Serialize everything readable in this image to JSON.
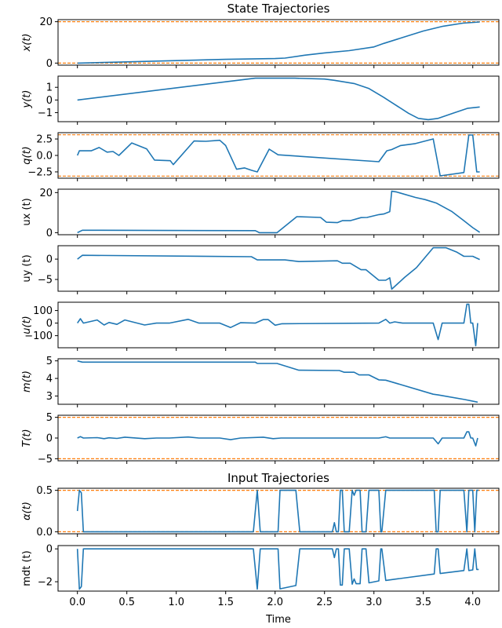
{
  "colors": {
    "series": "#1f77b4",
    "bounds": "#ff7f0e"
  },
  "titles": {
    "state": "State Trajectories",
    "input": "Input Trajectories"
  },
  "xlabel": "Time",
  "xlim": [
    -0.196,
    4.264
  ],
  "xticks": [
    0,
    0.5,
    1,
    1.5,
    2,
    2.5,
    3,
    3.5,
    4
  ],
  "xtick_labels": [
    "0.0",
    "0.5",
    "1.0",
    "1.5",
    "2.0",
    "2.5",
    "3.0",
    "3.5",
    "4.0"
  ],
  "chart_data": [
    {
      "type": "line",
      "ylabel": "x(t)",
      "italic": true,
      "ylim": [
        -1,
        21
      ],
      "yticks": [
        0,
        20
      ],
      "ytick_labels": [
        "0",
        "20"
      ],
      "bounds": [
        0,
        20
      ],
      "x": [
        0,
        0.5,
        1,
        1.5,
        2.0,
        2.1,
        2.3,
        2.5,
        2.75,
        3.0,
        3.1,
        3.3,
        3.5,
        3.7,
        3.9,
        4.07
      ],
      "y": [
        0,
        0.6,
        1.2,
        1.8,
        2.2,
        2.4,
        3.8,
        4.9,
        6.0,
        7.8,
        9.5,
        12.5,
        15.5,
        17.8,
        19.3,
        19.9
      ]
    },
    {
      "type": "line",
      "ylabel": "y(t)",
      "italic": true,
      "ylim": [
        -1.71,
        1.88
      ],
      "yticks": [
        -1,
        0,
        1
      ],
      "ytick_labels": [
        "−1",
        "0",
        "1"
      ],
      "bounds": [],
      "x": [
        0,
        1.8,
        2.2,
        2.5,
        2.6,
        2.8,
        2.95,
        3.1,
        3.2,
        3.35,
        3.45,
        3.55,
        3.65,
        3.8,
        3.95,
        4.07
      ],
      "y": [
        0,
        1.72,
        1.72,
        1.65,
        1.55,
        1.3,
        0.9,
        0.2,
        -0.3,
        -1.05,
        -1.45,
        -1.55,
        -1.45,
        -1.05,
        -0.65,
        -0.55
      ]
    },
    {
      "type": "line",
      "ylabel": "q(t)",
      "italic": true,
      "ylim": [
        -3.46,
        3.46
      ],
      "yticks": [
        -2.5,
        0,
        2.5
      ],
      "ytick_labels": [
        "−2.5",
        "0.0",
        "2.5"
      ],
      "bounds": [
        -3.14,
        3.14
      ],
      "x": [
        0,
        0.02,
        0.14,
        0.22,
        0.3,
        0.36,
        0.42,
        0.55,
        0.7,
        0.78,
        0.94,
        0.97,
        1.18,
        1.3,
        1.44,
        1.5,
        1.61,
        1.69,
        1.76,
        1.82,
        1.94,
        2.03,
        3.05,
        3.13,
        3.18,
        3.27,
        3.42,
        3.6,
        3.67,
        3.91,
        3.96,
        4.0,
        4.04,
        4.07
      ],
      "y": [
        0,
        0.7,
        0.7,
        1.2,
        0.5,
        0.6,
        0.0,
        1.9,
        1.0,
        -0.7,
        -0.8,
        -1.4,
        2.2,
        2.15,
        2.3,
        1.5,
        -2.1,
        -1.9,
        -2.26,
        -2.5,
        0.95,
        0.1,
        -0.95,
        0.7,
        0.9,
        1.5,
        1.8,
        2.5,
        -3.1,
        -2.6,
        3.1,
        3.1,
        -2.5,
        -2.5
      ]
    },
    {
      "type": "line",
      "ylabel": "ux (t)",
      "italic": false,
      "ylim": [
        -1.03,
        21.7
      ],
      "yticks": [
        0,
        20
      ],
      "ytick_labels": [
        "0",
        "20"
      ],
      "bounds": [],
      "x": [
        0,
        0.05,
        1.8,
        1.84,
        2.02,
        2.22,
        2.46,
        2.52,
        2.63,
        2.68,
        2.76,
        2.87,
        2.93,
        3.05,
        3.1,
        3.16,
        3.18,
        3.23,
        3.42,
        3.52,
        3.63,
        3.79,
        3.91,
        4.0,
        4.07
      ],
      "y": [
        0,
        1.2,
        1.0,
        0,
        0,
        8,
        7.6,
        5.2,
        5,
        6,
        6,
        7.5,
        7.6,
        9,
        9.3,
        10.5,
        20.7,
        20.3,
        17.6,
        16.5,
        14.8,
        10.5,
        6,
        2.5,
        0.2
      ]
    },
    {
      "type": "line",
      "ylabel": "uy (t)",
      "italic": false,
      "ylim": [
        -7.9,
        3.3
      ],
      "yticks": [
        -5,
        0
      ],
      "ytick_labels": [
        "−5",
        "0"
      ],
      "bounds": [],
      "x": [
        0,
        0.05,
        1.76,
        1.82,
        2.1,
        2.24,
        2.63,
        2.68,
        2.76,
        2.87,
        2.92,
        3.05,
        3.12,
        3.16,
        3.18,
        3.31,
        3.43,
        3.6,
        3.73,
        3.84,
        3.91,
        4.0,
        4.07
      ],
      "y": [
        0,
        0.95,
        0.6,
        -0.2,
        -0.2,
        -0.6,
        -0.4,
        -1.0,
        -1.0,
        -2.6,
        -2.6,
        -5.2,
        -5.2,
        -4.6,
        -7.4,
        -4.5,
        -2.1,
        2.8,
        2.8,
        1.7,
        0.7,
        0.7,
        -0.1
      ]
    },
    {
      "type": "line",
      "ylabel": "u(t)",
      "italic": true,
      "ylim": [
        -196,
        166
      ],
      "yticks": [
        -100,
        0,
        100
      ],
      "ytick_labels": [
        "−100",
        "0",
        "100"
      ],
      "bounds": [],
      "x": [
        0,
        0.03,
        0.06,
        0.2,
        0.27,
        0.32,
        0.4,
        0.48,
        0.68,
        0.8,
        0.93,
        1.12,
        1.23,
        1.44,
        1.55,
        1.65,
        1.8,
        1.88,
        1.93,
        2.0,
        2.07,
        3.05,
        3.12,
        3.16,
        3.21,
        3.29,
        3.6,
        3.65,
        3.69,
        3.91,
        3.94,
        3.96,
        3.98,
        4.0,
        4.03,
        4.05
      ],
      "y": [
        0,
        35,
        0,
        25,
        -15,
        5,
        -10,
        25,
        -15,
        0,
        0,
        30,
        0,
        0,
        -35,
        3,
        0,
        28,
        28,
        -17,
        -5,
        0,
        30,
        0,
        10,
        0,
        0,
        -131,
        0,
        0,
        150,
        150,
        0,
        0,
        -180,
        0
      ]
    },
    {
      "type": "line",
      "ylabel": "m(t)",
      "italic": true,
      "ylim": [
        2.53,
        5.12
      ],
      "yticks": [
        3,
        4,
        5
      ],
      "ytick_labels": [
        "3",
        "4",
        "5"
      ],
      "bounds": [],
      "x": [
        0,
        0.05,
        1.8,
        1.82,
        2.02,
        2.24,
        2.65,
        2.7,
        2.8,
        2.85,
        2.95,
        3.05,
        3.12,
        3.6,
        3.65,
        3.92,
        4.05
      ],
      "y": [
        5.0,
        4.93,
        4.93,
        4.85,
        4.85,
        4.47,
        4.45,
        4.35,
        4.35,
        4.2,
        4.2,
        3.92,
        3.9,
        3.1,
        3.06,
        2.8,
        2.65
      ]
    },
    {
      "type": "line",
      "ylabel": "T(t)",
      "italic": true,
      "ylim": [
        -5.5,
        5.5
      ],
      "yticks": [
        -5,
        0,
        5
      ],
      "ytick_labels": [
        "−5",
        "0",
        "5"
      ],
      "bounds": [
        -5,
        5
      ],
      "x": [
        0,
        0.03,
        0.06,
        0.2,
        0.27,
        0.32,
        0.4,
        0.48,
        0.68,
        0.8,
        0.93,
        1.12,
        1.23,
        1.44,
        1.55,
        1.65,
        1.88,
        1.98,
        2.06,
        3.05,
        3.12,
        3.16,
        3.6,
        3.65,
        3.69,
        3.91,
        3.94,
        3.96,
        3.98,
        4.0,
        4.03,
        4.05
      ],
      "y": [
        0,
        0.35,
        0,
        0.1,
        -0.15,
        0.05,
        -0.1,
        0.2,
        -0.15,
        0,
        0,
        0.25,
        0,
        0,
        -0.4,
        0,
        0.2,
        -0.15,
        0,
        0,
        0.3,
        0,
        0,
        -1.4,
        0,
        0,
        1.5,
        1.5,
        0,
        0,
        -1.9,
        0
      ]
    },
    {
      "type": "line",
      "ylabel": "α(t)",
      "italic": true,
      "ylim": [
        -0.025,
        0.525
      ],
      "yticks": [
        0,
        0.5
      ],
      "ytick_labels": [
        "0.0",
        "0.5"
      ],
      "bounds": [
        0,
        0.5
      ],
      "x": [
        0,
        0.02,
        0.04,
        0.06,
        1.78,
        1.82,
        1.85,
        2.03,
        2.05,
        2.21,
        2.25,
        2.58,
        2.6,
        2.62,
        2.64,
        2.66,
        2.68,
        2.7,
        2.75,
        2.78,
        2.8,
        2.82,
        2.86,
        2.88,
        2.92,
        2.95,
        3.05,
        3.07,
        3.08,
        3.12,
        3.61,
        3.63,
        3.65,
        3.67,
        3.91,
        3.94,
        3.96,
        4.0,
        4.02,
        4.04,
        4.06
      ],
      "y": [
        0.25,
        0.5,
        0.47,
        0,
        0,
        0.5,
        0,
        0,
        0.5,
        0.5,
        0,
        0,
        0.11,
        0,
        0,
        0.5,
        0.5,
        0,
        0,
        0.5,
        0.44,
        0.5,
        0.5,
        0,
        0,
        0.5,
        0.5,
        0,
        0,
        0.5,
        0.5,
        0,
        0,
        0.5,
        0.5,
        0,
        0.5,
        0.5,
        0,
        0.5,
        0.5
      ]
    },
    {
      "type": "line",
      "ylabel": "mdt (t)",
      "italic": false,
      "ylim": [
        -2.57,
        0.2
      ],
      "yticks": [
        -2,
        0
      ],
      "ytick_labels": [
        "−2",
        "0"
      ],
      "bounds": [],
      "x": [
        0,
        0.02,
        0.04,
        0.06,
        1.78,
        1.82,
        1.85,
        2.03,
        2.05,
        2.21,
        2.25,
        2.58,
        2.6,
        2.62,
        2.64,
        2.66,
        2.68,
        2.7,
        2.75,
        2.78,
        2.8,
        2.82,
        2.86,
        2.88,
        2.92,
        2.95,
        3.05,
        3.07,
        3.08,
        3.12,
        3.61,
        3.63,
        3.65,
        3.67,
        3.91,
        3.94,
        3.96,
        4.0,
        4.02,
        4.04,
        4.06
      ],
      "y": [
        0,
        -2.45,
        -2.3,
        0,
        0,
        -2.45,
        0,
        0,
        -2.43,
        -2.23,
        0,
        0,
        -0.53,
        0,
        0,
        -2.2,
        -2.2,
        0,
        0,
        -2.15,
        -1.83,
        -2.12,
        -2.12,
        0,
        0,
        -2.07,
        -1.95,
        0,
        0,
        -1.92,
        -1.53,
        0,
        0,
        -1.5,
        -1.32,
        0,
        -1.32,
        -1.28,
        0,
        -1.25,
        -1.25
      ]
    }
  ]
}
